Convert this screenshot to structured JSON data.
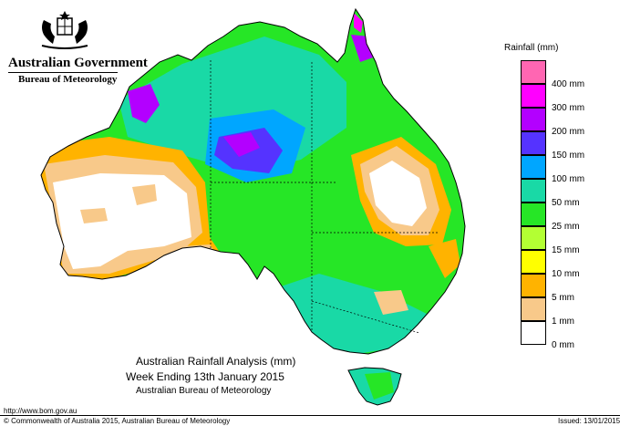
{
  "header": {
    "government": "Australian Government",
    "agency": "Bureau of Meteorology"
  },
  "legend": {
    "title": "Rainfall (mm)",
    "items": [
      {
        "label": "",
        "color": "#ff66b2"
      },
      {
        "label": "400 mm",
        "color": "#ff00ff"
      },
      {
        "label": "300 mm",
        "color": "#b300ff"
      },
      {
        "label": "200 mm",
        "color": "#5533ff"
      },
      {
        "label": "150 mm",
        "color": "#00a6ff"
      },
      {
        "label": "100 mm",
        "color": "#19d9a6"
      },
      {
        "label": "50 mm",
        "color": "#26e626"
      },
      {
        "label": "25 mm",
        "color": "#b3ff33"
      },
      {
        "label": "15 mm",
        "color": "#ffff00"
      },
      {
        "label": "10 mm",
        "color": "#ffb300"
      },
      {
        "label": "5 mm",
        "color": "#f8c98a"
      },
      {
        "label": "1 mm",
        "color": "#ffffff"
      },
      {
        "label": "0 mm",
        "color": ""
      }
    ]
  },
  "caption": {
    "line1": "Australian Rainfall Analysis (mm)",
    "line2": "Week Ending 13th January 2015",
    "line3": "Australian Bureau of Meteorology"
  },
  "footer": {
    "url": "http://www.bom.gov.au",
    "copyright": "© Commonwealth of Australia 2015, Australian Bureau of Meteorology",
    "issued": "Issued: 13/01/2015"
  },
  "map": {
    "colors": {
      "none": "#ffffff",
      "r1": "#f8c98a",
      "r5": "#ffb300",
      "r10": "#ffff00",
      "r15": "#b3ff33",
      "r25": "#26e626",
      "r50": "#19d9a6",
      "r100": "#00a6ff",
      "r150": "#5533ff",
      "r200": "#b300ff",
      "r300": "#ff00ff"
    }
  }
}
